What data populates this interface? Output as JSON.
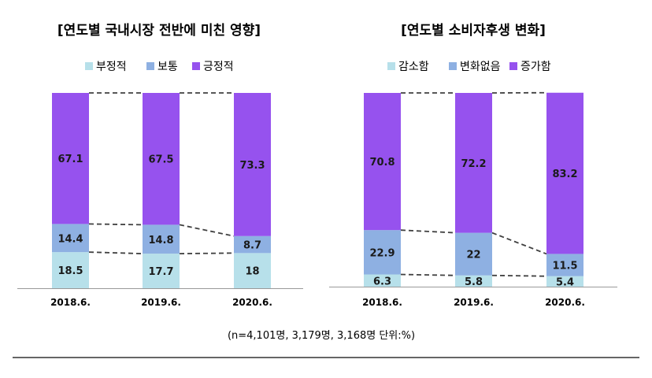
{
  "colors": {
    "negative": "#b7e0ea",
    "neutral": "#8eb0e2",
    "positive": "#9652ee",
    "connector": "#404040",
    "axis": "#999999",
    "footer_line": "#333333"
  },
  "footnote": "(n=4,101명,  3,179명,  3,168명  단위:%)",
  "chart_data": [
    {
      "type": "bar",
      "stacked": true,
      "percent": true,
      "title": "[연도별 국내시장 전반에 미친 영향]",
      "categories": [
        "2018.6.",
        "2019.6.",
        "2020.6."
      ],
      "series": [
        {
          "name": "부정적",
          "color": "#b7e0ea",
          "values": [
            18.5,
            17.7,
            18
          ]
        },
        {
          "name": "보통",
          "color": "#8eb0e2",
          "values": [
            14.4,
            14.8,
            8.7
          ]
        },
        {
          "name": "긍정적",
          "color": "#9652ee",
          "values": [
            67.1,
            67.5,
            73.3
          ]
        }
      ],
      "legend": "top",
      "ylim": [
        0,
        100
      ],
      "grid": false
    },
    {
      "type": "bar",
      "stacked": true,
      "percent": true,
      "title": "[연도별 소비자후생 변화]",
      "categories": [
        "2018.6.",
        "2019.6.",
        "2020.6."
      ],
      "series": [
        {
          "name": "감소함",
          "color": "#b7e0ea",
          "values": [
            6.3,
            5.8,
            5.4
          ]
        },
        {
          "name": "변화없음",
          "color": "#8eb0e2",
          "values": [
            22.9,
            22,
            11.5
          ]
        },
        {
          "name": "증가함",
          "color": "#9652ee",
          "values": [
            70.8,
            72.2,
            83.2
          ]
        }
      ],
      "legend": "top",
      "ylim": [
        0,
        100
      ],
      "grid": false
    }
  ]
}
